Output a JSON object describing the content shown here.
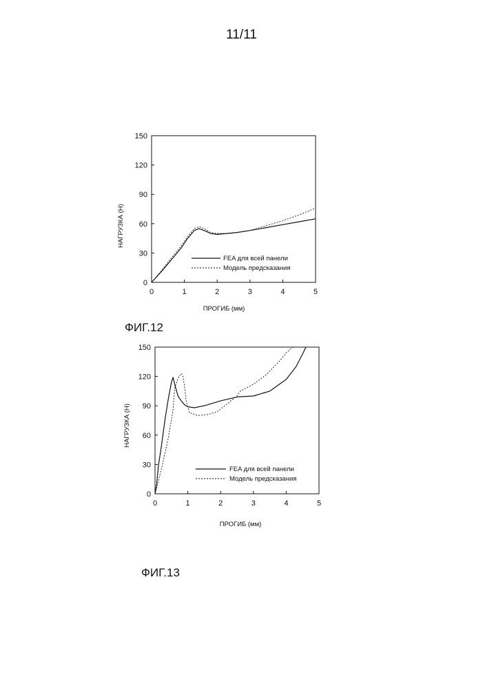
{
  "page": {
    "number": "11/11"
  },
  "chart_data": [
    {
      "id": "fig12",
      "type": "line",
      "caption": "ФИГ.12",
      "xlabel": "ПРОГИБ (мм)",
      "ylabel": "НАГРУЗКА (Н)",
      "xlim": [
        0,
        5
      ],
      "ylim": [
        0,
        150
      ],
      "xticks": [
        0,
        1,
        2,
        3,
        4,
        5
      ],
      "yticks": [
        0,
        30,
        60,
        90,
        120,
        150
      ],
      "grid": false,
      "legend_position": "bottom-right",
      "series": [
        {
          "name": "FEA для всей панели",
          "style": "solid",
          "points": [
            [
              0,
              0
            ],
            [
              0.3,
              11
            ],
            [
              0.6,
              23
            ],
            [
              0.9,
              35
            ],
            [
              1.1,
              45
            ],
            [
              1.3,
              53
            ],
            [
              1.45,
              55
            ],
            [
              1.6,
              53
            ],
            [
              1.8,
              50
            ],
            [
              2.0,
              49
            ],
            [
              2.3,
              50
            ],
            [
              2.6,
              51
            ],
            [
              3.0,
              53
            ],
            [
              3.5,
              56
            ],
            [
              4.0,
              59
            ],
            [
              4.5,
              62
            ],
            [
              5.0,
              65
            ]
          ]
        },
        {
          "name": "Модель предсказания",
          "style": "dashed",
          "points": [
            [
              0,
              0
            ],
            [
              0.3,
              12
            ],
            [
              0.6,
              25
            ],
            [
              0.9,
              37
            ],
            [
              1.1,
              47
            ],
            [
              1.3,
              55
            ],
            [
              1.45,
              57
            ],
            [
              1.6,
              55
            ],
            [
              1.8,
              51
            ],
            [
              2.0,
              50
            ],
            [
              2.3,
              50
            ],
            [
              2.6,
              51
            ],
            [
              3.0,
              53
            ],
            [
              3.5,
              58
            ],
            [
              4.0,
              63
            ],
            [
              4.5,
              69
            ],
            [
              5.0,
              76
            ]
          ]
        }
      ]
    },
    {
      "id": "fig13",
      "type": "line",
      "caption": "ФИГ.13",
      "xlabel": "ПРОГИБ (мм)",
      "ylabel": "НАГРУЗКА (Н)",
      "xlim": [
        0,
        5
      ],
      "ylim": [
        0,
        150
      ],
      "xticks": [
        0,
        1,
        2,
        3,
        4,
        5
      ],
      "yticks": [
        0,
        30,
        60,
        90,
        120,
        150
      ],
      "grid": false,
      "legend_position": "bottom-right",
      "series": [
        {
          "name": "FEA для всей панели",
          "style": "solid",
          "points": [
            [
              0,
              0
            ],
            [
              0.05,
              10
            ],
            [
              0.1,
              28
            ],
            [
              0.2,
              50
            ],
            [
              0.3,
              75
            ],
            [
              0.4,
              96
            ],
            [
              0.5,
              114
            ],
            [
              0.55,
              119
            ],
            [
              0.6,
              112
            ],
            [
              0.7,
              100
            ],
            [
              0.8,
              95
            ],
            [
              0.9,
              91
            ],
            [
              1.0,
              89
            ],
            [
              1.2,
              88
            ],
            [
              1.5,
              90
            ],
            [
              2.0,
              95
            ],
            [
              2.5,
              99
            ],
            [
              3.0,
              100
            ],
            [
              3.5,
              105
            ],
            [
              4.0,
              117
            ],
            [
              4.3,
              130
            ],
            [
              4.5,
              143
            ],
            [
              4.6,
              150
            ]
          ]
        },
        {
          "name": "Модель предсказания",
          "style": "dashed",
          "points": [
            [
              0,
              0
            ],
            [
              0.2,
              26
            ],
            [
              0.4,
              56
            ],
            [
              0.55,
              86
            ],
            [
              0.6,
              108
            ],
            [
              0.7,
              118
            ],
            [
              0.8,
              123
            ],
            [
              0.85,
              120
            ],
            [
              0.9,
              110
            ],
            [
              0.95,
              95
            ],
            [
              1.05,
              83
            ],
            [
              1.3,
              80
            ],
            [
              1.6,
              81
            ],
            [
              1.9,
              84
            ],
            [
              2.2,
              92
            ],
            [
              2.5,
              100
            ],
            [
              2.6,
              105
            ],
            [
              3.0,
              112
            ],
            [
              3.4,
              122
            ],
            [
              3.8,
              136
            ],
            [
              4.0,
              144
            ],
            [
              4.2,
              150
            ]
          ]
        }
      ]
    }
  ]
}
